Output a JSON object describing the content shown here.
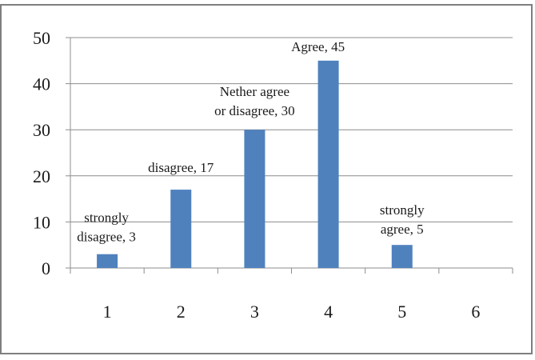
{
  "chart_data": {
    "type": "bar",
    "title": "",
    "xlabel": "",
    "ylabel": "",
    "categories": [
      "1",
      "2",
      "3",
      "4",
      "5",
      "6"
    ],
    "values": [
      3,
      17,
      30,
      45,
      5,
      null
    ],
    "data_labels": [
      [
        "strongly",
        "disagree, 3"
      ],
      [
        "disagree, 17"
      ],
      [
        "Nether agree",
        "or disagree, 30"
      ],
      [
        "Agree, 45"
      ],
      [
        "strongly",
        "agree, 5"
      ],
      []
    ],
    "yticks": [
      "0",
      "10",
      "20",
      "30",
      "40",
      "50"
    ],
    "ylim": [
      0,
      50
    ],
    "grid": true,
    "legend": "none",
    "bar_color": "#4F81BD",
    "grid_color": "#8c8c8c",
    "border_color": "#7f7f7f"
  }
}
